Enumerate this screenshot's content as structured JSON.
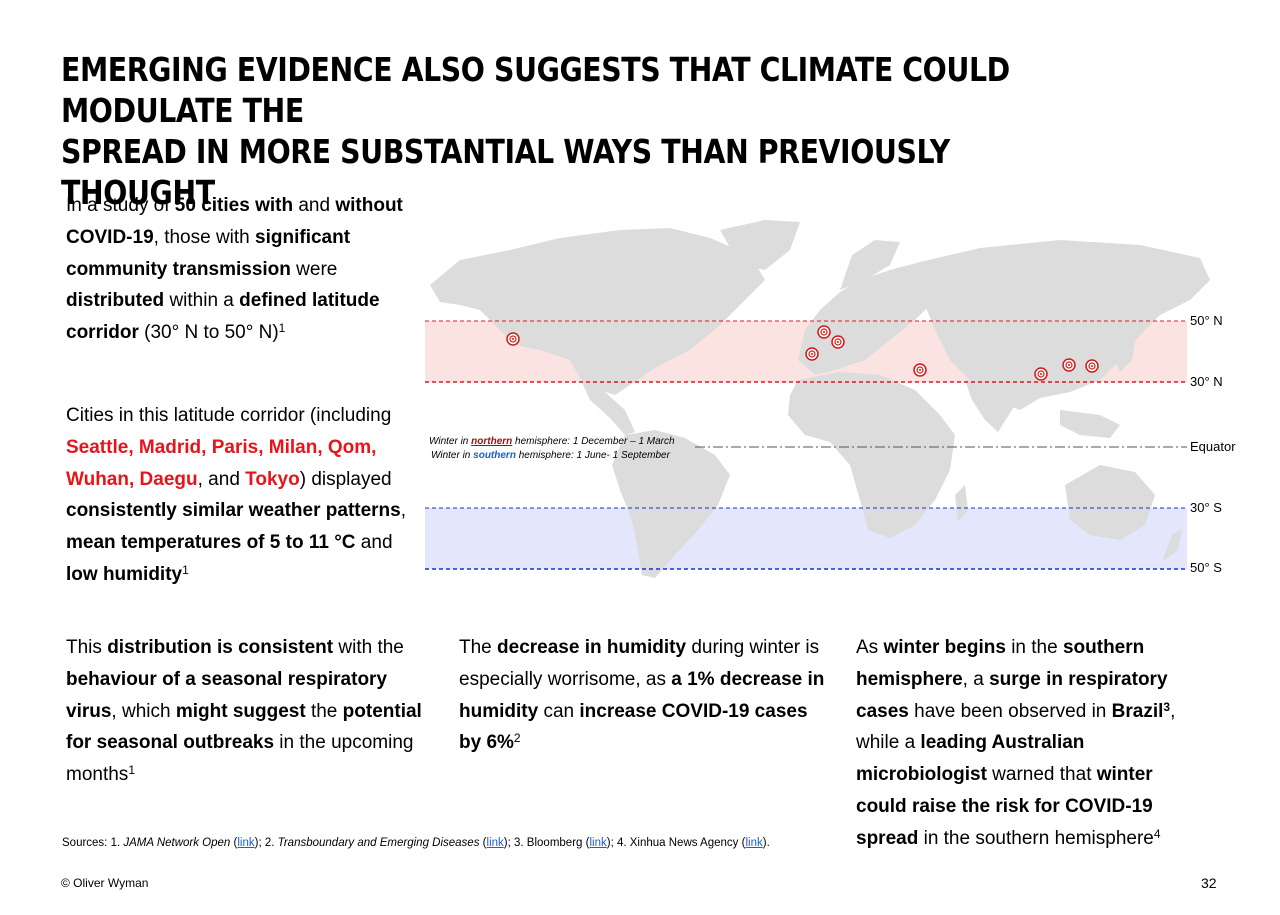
{
  "title": "EMERGING EVIDENCE ALSO SUGGESTS THAT CLIMATE COULD MODULATE THE\nSPREAD IN MORE SUBSTANTIAL WAYS THAN PREVIOUSLY THOUGHT",
  "paragraph1": {
    "t1": "In a study of ",
    "b1": "50 cities with",
    "t2": " and ",
    "b2": "without COVID-19",
    "t3": ", those with ",
    "b3": "significant community transmission",
    "t4": " were ",
    "b4": "distributed",
    "t5": " within a ",
    "b5": "defined latitude corridor",
    "t6": " (30° N to 50° N)",
    "ref": "1"
  },
  "paragraph2": {
    "t1": "Cities in this latitude corridor (including ",
    "cities": [
      "Seattle",
      "Madrid",
      "Paris",
      "Milan",
      "Qom",
      "Wuhan",
      "Daegu"
    ],
    "sep": ", ",
    "and": ", and ",
    "last_city": "Tokyo",
    "t2": ") displayed ",
    "b1": "consistently similar weather patterns",
    "t3": ", ",
    "b2": "mean temperatures of 5 to 11 °C",
    "t4": " and ",
    "b3": "low humidity",
    "ref": "1"
  },
  "paragraph3": {
    "t1": "This ",
    "b1": "distribution is consistent",
    "t2": " with the ",
    "b2": "behaviour of a seasonal respiratory virus",
    "t3": ", which ",
    "b3": "might suggest",
    "t4": " the ",
    "b4": "potential for seasonal outbreaks",
    "t5": " in the upcoming months",
    "ref": "1"
  },
  "paragraph4": {
    "t1": "The ",
    "b1": "decrease in humidity",
    "t2": " during winter is especially worrisome, as ",
    "b2": "a 1% decrease in humidity",
    "t3": " can ",
    "b3": "increase COVID-19 cases by 6%",
    "ref": "2"
  },
  "paragraph5": {
    "t1": "As ",
    "b1": "winter begins",
    "t2": " in the ",
    "b2": "southern hemisphere",
    "t3": ", a ",
    "b3": "surge in respiratory cases",
    "t4": " have been observed in ",
    "b4": "Brazil",
    "ref1": "3",
    "t5": ", while a ",
    "b5": "leading Australian microbiologist",
    "t6": " warned that ",
    "b6": "winter could raise the risk for COVID-19 spread",
    "t7": " in the southern hemisphere",
    "ref2": "4"
  },
  "map": {
    "labels": {
      "n50": "50° N",
      "n30": "30° N",
      "equator": "Equator",
      "s30": "30° S",
      "s50": "50° S"
    },
    "winter_north": {
      "pre": "Winter in ",
      "word": "northern",
      "post": " hemisphere: 1 December – 1 March"
    },
    "winter_south": {
      "pre": "Winter in ",
      "word": "southern",
      "post": " hemisphere: 1 June- 1 September"
    },
    "colors": {
      "north_band": "#fbe3e1",
      "south_band": "#e4e6fb",
      "north_line": "#e8141b",
      "south_line": "#1c2bd6",
      "land": "#dcdcdc",
      "marker": "#d11a1a",
      "northern_word": "#9b1010",
      "southern_word": "#1a5fd1"
    }
  },
  "sources": {
    "prefix": "Sources: 1. ",
    "s1": "JAMA Network Open",
    "s2pre": "; 2. ",
    "s2": "Transboundary and Emerging Diseases",
    "s3": "; 3. Bloomberg ",
    "s4": "; 4. Xinhua News Agency ",
    "link": "link",
    "open": "(",
    "close": ")",
    "end": "."
  },
  "copyright": "© Oliver Wyman",
  "page_number": "32"
}
